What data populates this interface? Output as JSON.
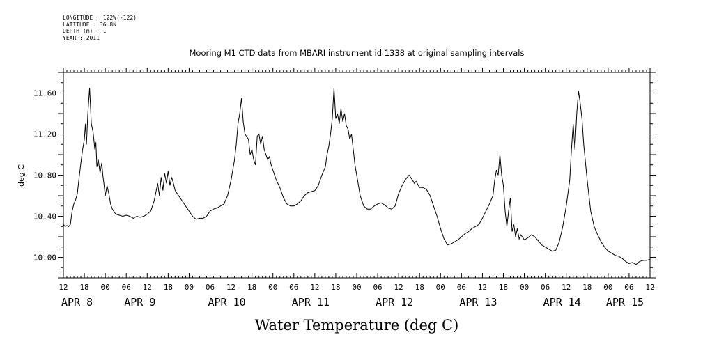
{
  "metadata": {
    "longitude": "LONGITUDE : 122W(-122)",
    "latitude": "LATITUDE : 36.8N",
    "depth": "DEPTH (m) : 1",
    "year": "YEAR : 2011"
  },
  "chart_data": {
    "type": "line",
    "title": "Mooring M1 CTD data from MBARI instrument id 1338 at original sampling intervals",
    "xlabel": "Water Temperature (deg C)",
    "ylabel": "deg C",
    "xlim_hours": [
      0,
      168
    ],
    "ylim": [
      9.8,
      11.8
    ],
    "y_ticks": [
      10.0,
      10.4,
      10.8,
      11.2,
      11.6
    ],
    "y_tick_labels": [
      "10.00",
      "10.40",
      "10.80",
      "11.20",
      "11.60"
    ],
    "x_tick_labels": [
      "12",
      "18",
      "00",
      "06",
      "12",
      "18",
      "00",
      "06",
      "12",
      "18",
      "00",
      "06",
      "12",
      "18",
      "00",
      "06",
      "12",
      "18",
      "00",
      "06",
      "12",
      "18",
      "00",
      "06",
      "12",
      "18",
      "00",
      "06",
      "12"
    ],
    "date_labels": [
      {
        "text": "APR  8",
        "hour": 0
      },
      {
        "text": "APR  9",
        "hour": 18
      },
      {
        "text": "APR 10",
        "hour": 42
      },
      {
        "text": "APR 11",
        "hour": 66
      },
      {
        "text": "APR 12",
        "hour": 90
      },
      {
        "text": "APR 13",
        "hour": 114
      },
      {
        "text": "APR 14",
        "hour": 138
      },
      {
        "text": "APR 15",
        "hour": 156
      }
    ],
    "series": [
      {
        "name": "",
        "points": [
          [
            0,
            10.32
          ],
          [
            0.5,
            10.3
          ],
          [
            1,
            10.31
          ],
          [
            1.5,
            10.3
          ],
          [
            2,
            10.32
          ],
          [
            2.5,
            10.45
          ],
          [
            3,
            10.52
          ],
          [
            3.5,
            10.56
          ],
          [
            4,
            10.62
          ],
          [
            4.5,
            10.78
          ],
          [
            5,
            10.92
          ],
          [
            5.5,
            11.05
          ],
          [
            6,
            11.15
          ],
          [
            6.3,
            11.3
          ],
          [
            6.6,
            11.1
          ],
          [
            7,
            11.4
          ],
          [
            7.5,
            11.65
          ],
          [
            8,
            11.3
          ],
          [
            8.5,
            11.22
          ],
          [
            9,
            11.05
          ],
          [
            9.3,
            11.12
          ],
          [
            9.6,
            10.88
          ],
          [
            10,
            10.95
          ],
          [
            10.5,
            10.82
          ],
          [
            11,
            10.92
          ],
          [
            11.3,
            10.8
          ],
          [
            11.6,
            10.72
          ],
          [
            12,
            10.6
          ],
          [
            12.5,
            10.7
          ],
          [
            13,
            10.62
          ],
          [
            13.5,
            10.52
          ],
          [
            14,
            10.47
          ],
          [
            15,
            10.42
          ],
          [
            16,
            10.41
          ],
          [
            17,
            10.4
          ],
          [
            18,
            10.41
          ],
          [
            19,
            10.4
          ],
          [
            20,
            10.38
          ],
          [
            21,
            10.4
          ],
          [
            22,
            10.39
          ],
          [
            23,
            10.4
          ],
          [
            24,
            10.42
          ],
          [
            25,
            10.45
          ],
          [
            26,
            10.55
          ],
          [
            27,
            10.72
          ],
          [
            27.5,
            10.6
          ],
          [
            28,
            10.78
          ],
          [
            28.5,
            10.65
          ],
          [
            29,
            10.82
          ],
          [
            29.5,
            10.72
          ],
          [
            30,
            10.84
          ],
          [
            30.5,
            10.7
          ],
          [
            31,
            10.78
          ],
          [
            31.5,
            10.72
          ],
          [
            32,
            10.65
          ],
          [
            33,
            10.6
          ],
          [
            34,
            10.55
          ],
          [
            35,
            10.5
          ],
          [
            36,
            10.45
          ],
          [
            37,
            10.4
          ],
          [
            38,
            10.37
          ],
          [
            39,
            10.38
          ],
          [
            40,
            10.38
          ],
          [
            41,
            10.4
          ],
          [
            42,
            10.45
          ],
          [
            43,
            10.47
          ],
          [
            44,
            10.48
          ],
          [
            45,
            10.5
          ],
          [
            46,
            10.52
          ],
          [
            47,
            10.6
          ],
          [
            48,
            10.75
          ],
          [
            49,
            10.95
          ],
          [
            49.5,
            11.1
          ],
          [
            50,
            11.3
          ],
          [
            50.5,
            11.4
          ],
          [
            51,
            11.55
          ],
          [
            51.5,
            11.32
          ],
          [
            52,
            11.2
          ],
          [
            53,
            11.15
          ],
          [
            53.5,
            11.0
          ],
          [
            54,
            11.05
          ],
          [
            54.5,
            10.95
          ],
          [
            55,
            10.9
          ],
          [
            55.5,
            11.18
          ],
          [
            56,
            11.2
          ],
          [
            56.5,
            11.1
          ],
          [
            57,
            11.18
          ],
          [
            57.5,
            11.05
          ],
          [
            58,
            11.0
          ],
          [
            58.5,
            10.95
          ],
          [
            59,
            10.98
          ],
          [
            59.5,
            10.9
          ],
          [
            60,
            10.85
          ],
          [
            61,
            10.75
          ],
          [
            62,
            10.68
          ],
          [
            63,
            10.58
          ],
          [
            64,
            10.52
          ],
          [
            65,
            10.5
          ],
          [
            66,
            10.5
          ],
          [
            67,
            10.52
          ],
          [
            68,
            10.55
          ],
          [
            69,
            10.6
          ],
          [
            70,
            10.63
          ],
          [
            71,
            10.64
          ],
          [
            72,
            10.65
          ],
          [
            73,
            10.7
          ],
          [
            74,
            10.8
          ],
          [
            75,
            10.88
          ],
          [
            75.5,
            11.0
          ],
          [
            76,
            11.08
          ],
          [
            76.5,
            11.2
          ],
          [
            77,
            11.35
          ],
          [
            77.5,
            11.65
          ],
          [
            78,
            11.35
          ],
          [
            78.5,
            11.4
          ],
          [
            79,
            11.3
          ],
          [
            79.5,
            11.45
          ],
          [
            80,
            11.32
          ],
          [
            80.5,
            11.4
          ],
          [
            81,
            11.28
          ],
          [
            81.5,
            11.25
          ],
          [
            82,
            11.15
          ],
          [
            82.5,
            11.2
          ],
          [
            83,
            11.05
          ],
          [
            83.5,
            10.9
          ],
          [
            84,
            10.8
          ],
          [
            84.5,
            10.7
          ],
          [
            85,
            10.6
          ],
          [
            86,
            10.5
          ],
          [
            87,
            10.47
          ],
          [
            88,
            10.47
          ],
          [
            89,
            10.5
          ],
          [
            90,
            10.52
          ],
          [
            91,
            10.53
          ],
          [
            92,
            10.51
          ],
          [
            93,
            10.48
          ],
          [
            94,
            10.47
          ],
          [
            95,
            10.5
          ],
          [
            96,
            10.62
          ],
          [
            97,
            10.7
          ],
          [
            98,
            10.76
          ],
          [
            99,
            10.8
          ],
          [
            100,
            10.75
          ],
          [
            100.5,
            10.72
          ],
          [
            101,
            10.74
          ],
          [
            102,
            10.68
          ],
          [
            103,
            10.68
          ],
          [
            104,
            10.66
          ],
          [
            105,
            10.6
          ],
          [
            106,
            10.5
          ],
          [
            107,
            10.4
          ],
          [
            108,
            10.28
          ],
          [
            109,
            10.18
          ],
          [
            110,
            10.12
          ],
          [
            111,
            10.13
          ],
          [
            112,
            10.15
          ],
          [
            113,
            10.17
          ],
          [
            114,
            10.2
          ],
          [
            115,
            10.23
          ],
          [
            116,
            10.25
          ],
          [
            117,
            10.28
          ],
          [
            118,
            10.3
          ],
          [
            119,
            10.32
          ],
          [
            120,
            10.38
          ],
          [
            121,
            10.45
          ],
          [
            122,
            10.52
          ],
          [
            123,
            10.6
          ],
          [
            123.5,
            10.75
          ],
          [
            124,
            10.85
          ],
          [
            124.5,
            10.8
          ],
          [
            125,
            11.0
          ],
          [
            125.5,
            10.8
          ],
          [
            126,
            10.7
          ],
          [
            126.5,
            10.45
          ],
          [
            127,
            10.3
          ],
          [
            127.5,
            10.45
          ],
          [
            128,
            10.58
          ],
          [
            128.5,
            10.25
          ],
          [
            129,
            10.32
          ],
          [
            129.5,
            10.2
          ],
          [
            130,
            10.28
          ],
          [
            130.5,
            10.18
          ],
          [
            131,
            10.22
          ],
          [
            132,
            10.17
          ],
          [
            133,
            10.19
          ],
          [
            134,
            10.22
          ],
          [
            135,
            10.2
          ],
          [
            136,
            10.16
          ],
          [
            137,
            10.12
          ],
          [
            138,
            10.1
          ],
          [
            139,
            10.08
          ],
          [
            140,
            10.06
          ],
          [
            141,
            10.07
          ],
          [
            142,
            10.15
          ],
          [
            143,
            10.3
          ],
          [
            144,
            10.5
          ],
          [
            145,
            10.75
          ],
          [
            145.5,
            11.05
          ],
          [
            146,
            11.3
          ],
          [
            146.5,
            11.05
          ],
          [
            147,
            11.4
          ],
          [
            147.5,
            11.62
          ],
          [
            148,
            11.5
          ],
          [
            148.5,
            11.35
          ],
          [
            149,
            11.1
          ],
          [
            150,
            10.75
          ],
          [
            150.5,
            10.6
          ],
          [
            151,
            10.45
          ],
          [
            152,
            10.3
          ],
          [
            153,
            10.22
          ],
          [
            154,
            10.15
          ],
          [
            155,
            10.1
          ],
          [
            156,
            10.06
          ],
          [
            157,
            10.04
          ],
          [
            158,
            10.02
          ],
          [
            159,
            10.01
          ],
          [
            160,
            9.99
          ],
          [
            161,
            9.96
          ],
          [
            162,
            9.94
          ],
          [
            163,
            9.95
          ],
          [
            164,
            9.93
          ],
          [
            165,
            9.96
          ],
          [
            166,
            9.97
          ],
          [
            167,
            9.97
          ],
          [
            168,
            9.98
          ]
        ]
      }
    ]
  }
}
